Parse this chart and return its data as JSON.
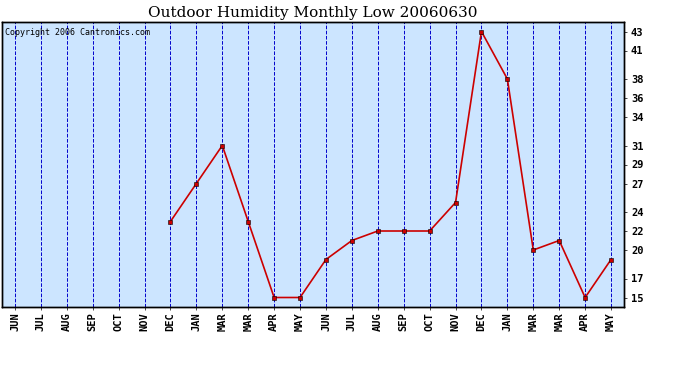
{
  "title": "Outdoor Humidity Monthly Low 20060630",
  "copyright": "Copyright 2006 Cantronics.com",
  "x_labels": [
    "JUN",
    "JUL",
    "AUG",
    "SEP",
    "OCT",
    "NOV",
    "DEC",
    "JAN",
    "MAR",
    "MAR",
    "APR",
    "MAY",
    "JUN",
    "JUL",
    "AUG",
    "SEP",
    "OCT",
    "NOV",
    "DEC",
    "JAN",
    "MAR",
    "MAR",
    "APR",
    "MAY"
  ],
  "y_values": [
    null,
    null,
    null,
    null,
    null,
    null,
    23,
    27,
    31,
    23,
    15,
    15,
    19,
    21,
    22,
    22,
    22,
    25,
    43,
    38,
    20,
    21,
    15,
    19
  ],
  "y_ticks": [
    15,
    17,
    20,
    22,
    24,
    27,
    29,
    31,
    34,
    36,
    38,
    41,
    43
  ],
  "y_min": 14,
  "y_max": 44,
  "line_color": "#cc0000",
  "marker": "s",
  "marker_size": 3,
  "bg_color": "#cce5ff",
  "outer_bg": "#ffffff",
  "grid_color": "#0000cc",
  "title_fontsize": 11,
  "copyright_fontsize": 6,
  "tick_fontsize": 7.5
}
